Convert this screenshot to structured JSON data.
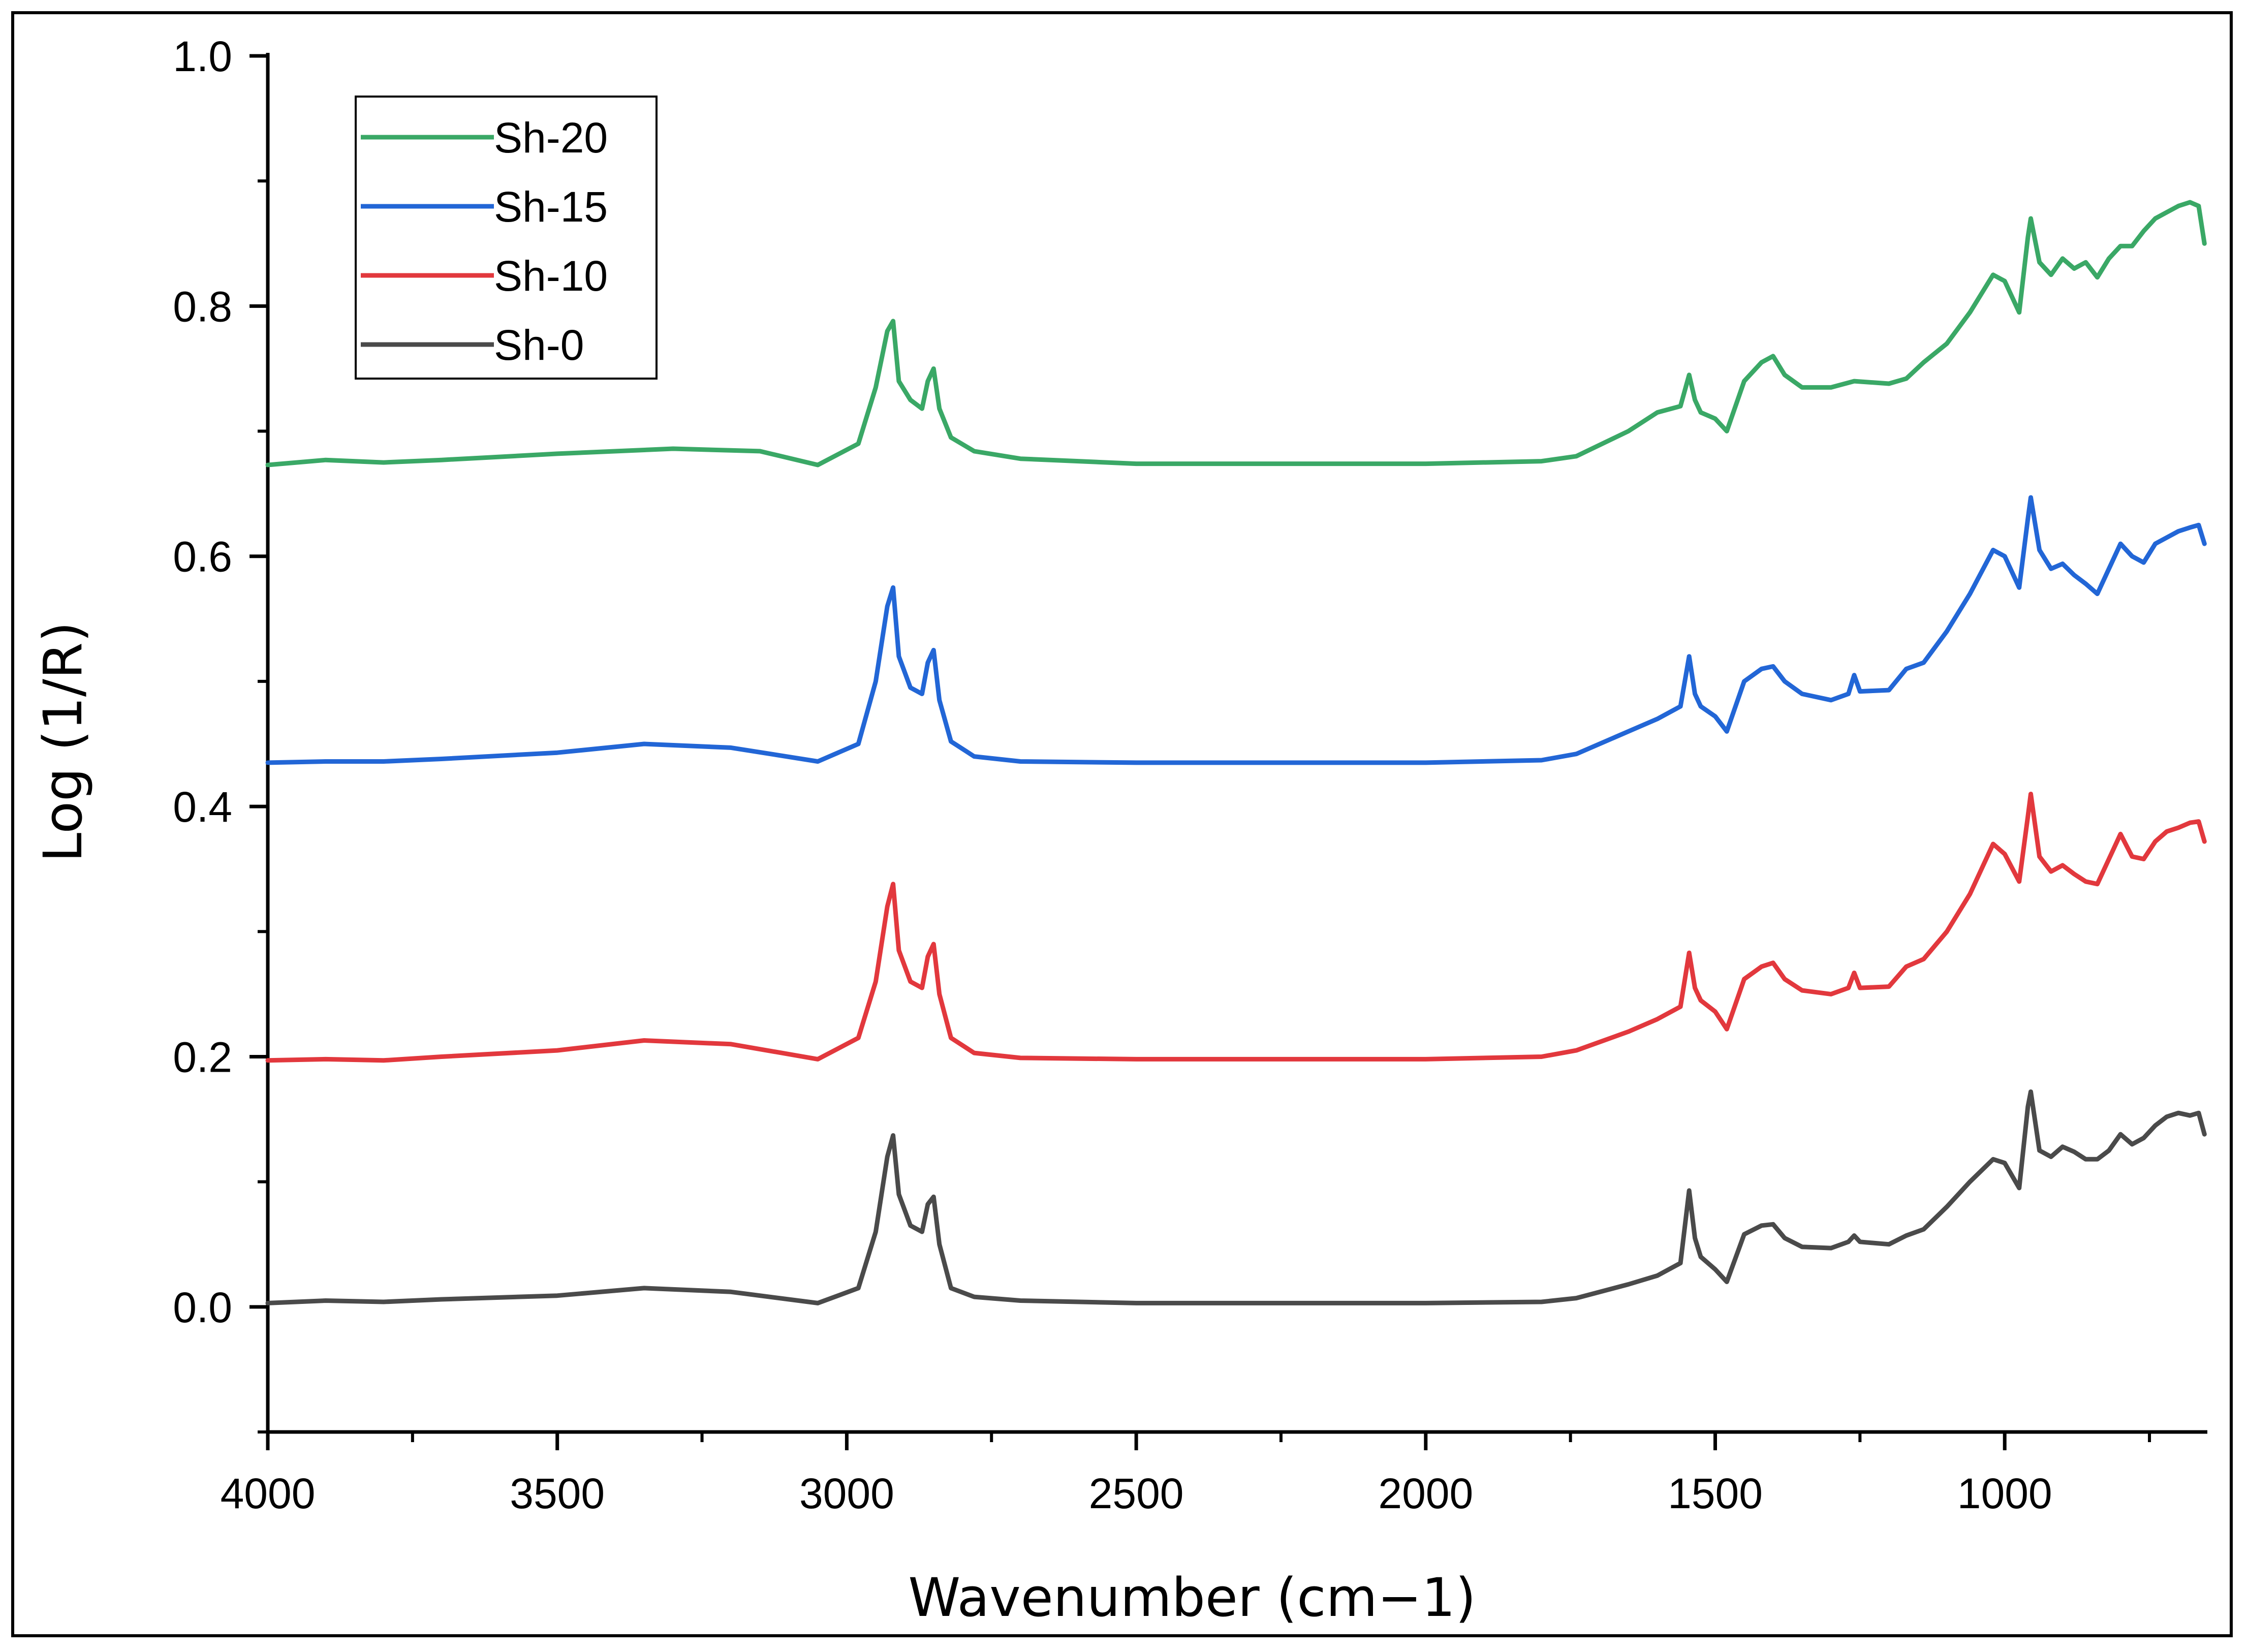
{
  "chart_data": {
    "type": "line",
    "title": "",
    "xlabel": "Wavenumber (cm−1)",
    "ylabel": "Log (1/R)",
    "xlim": [
      4000,
      650
    ],
    "ylim": [
      -0.1,
      1.0
    ],
    "x_reversed": true,
    "grid": false,
    "legend_position": "top-left",
    "x_ticks": [
      {
        "value": 4000,
        "label": "4000"
      },
      {
        "value": 3500,
        "label": "3500"
      },
      {
        "value": 3000,
        "label": "3000"
      },
      {
        "value": 2500,
        "label": "2500"
      },
      {
        "value": 2000,
        "label": "2000"
      },
      {
        "value": 1500,
        "label": "1500"
      },
      {
        "value": 1000,
        "label": "1000"
      }
    ],
    "y_ticks": [
      {
        "value": 0.0,
        "label": "0.0"
      },
      {
        "value": 0.2,
        "label": "0.2"
      },
      {
        "value": 0.4,
        "label": "0.4"
      },
      {
        "value": 0.6,
        "label": "0.6"
      },
      {
        "value": 0.8,
        "label": "0.8"
      },
      {
        "value": 1.0,
        "label": "1.0"
      }
    ],
    "series": [
      {
        "name": "Sh-20",
        "color": "#3aa866",
        "x": [
          4000,
          3900,
          3800,
          3700,
          3500,
          3300,
          3150,
          3050,
          2980,
          2950,
          2930,
          2920,
          2910,
          2890,
          2870,
          2860,
          2850,
          2840,
          2820,
          2780,
          2700,
          2500,
          2000,
          1800,
          1740,
          1650,
          1600,
          1560,
          1545,
          1535,
          1525,
          1500,
          1480,
          1450,
          1420,
          1400,
          1380,
          1350,
          1300,
          1260,
          1200,
          1170,
          1140,
          1100,
          1060,
          1020,
          1000,
          975,
          960,
          955,
          940,
          920,
          900,
          880,
          860,
          840,
          820,
          800,
          780,
          760,
          740,
          720,
          700,
          680,
          665,
          655
        ],
        "y": [
          0.673,
          0.677,
          0.675,
          0.677,
          0.682,
          0.686,
          0.684,
          0.673,
          0.69,
          0.735,
          0.78,
          0.788,
          0.74,
          0.725,
          0.718,
          0.74,
          0.75,
          0.718,
          0.695,
          0.684,
          0.678,
          0.674,
          0.674,
          0.676,
          0.68,
          0.7,
          0.715,
          0.72,
          0.745,
          0.725,
          0.715,
          0.71,
          0.7,
          0.74,
          0.755,
          0.76,
          0.745,
          0.735,
          0.735,
          0.74,
          0.738,
          0.742,
          0.755,
          0.77,
          0.795,
          0.825,
          0.82,
          0.795,
          0.855,
          0.87,
          0.835,
          0.825,
          0.838,
          0.83,
          0.835,
          0.823,
          0.838,
          0.848,
          0.848,
          0.86,
          0.87,
          0.875,
          0.88,
          0.883,
          0.88,
          0.85
        ]
      },
      {
        "name": "Sh-15",
        "color": "#2266d6",
        "x": [
          4000,
          3900,
          3800,
          3700,
          3500,
          3350,
          3200,
          3050,
          2980,
          2950,
          2930,
          2920,
          2910,
          2890,
          2870,
          2860,
          2850,
          2840,
          2820,
          2780,
          2700,
          2500,
          2000,
          1800,
          1740,
          1650,
          1600,
          1560,
          1545,
          1535,
          1525,
          1500,
          1480,
          1450,
          1420,
          1400,
          1380,
          1350,
          1300,
          1270,
          1260,
          1250,
          1200,
          1170,
          1140,
          1100,
          1060,
          1020,
          1000,
          975,
          960,
          955,
          940,
          920,
          900,
          880,
          860,
          840,
          820,
          800,
          780,
          760,
          740,
          720,
          700,
          680,
          665,
          655
        ],
        "y": [
          0.435,
          0.436,
          0.436,
          0.438,
          0.443,
          0.45,
          0.447,
          0.436,
          0.45,
          0.5,
          0.56,
          0.575,
          0.52,
          0.495,
          0.49,
          0.515,
          0.525,
          0.485,
          0.452,
          0.44,
          0.436,
          0.435,
          0.435,
          0.437,
          0.442,
          0.46,
          0.47,
          0.48,
          0.52,
          0.49,
          0.48,
          0.472,
          0.46,
          0.5,
          0.51,
          0.512,
          0.5,
          0.49,
          0.485,
          0.49,
          0.505,
          0.492,
          0.493,
          0.51,
          0.515,
          0.54,
          0.57,
          0.605,
          0.6,
          0.575,
          0.63,
          0.647,
          0.605,
          0.59,
          0.594,
          0.585,
          0.578,
          0.57,
          0.59,
          0.61,
          0.6,
          0.595,
          0.61,
          0.615,
          0.62,
          0.623,
          0.625,
          0.61
        ]
      },
      {
        "name": "Sh-10",
        "color": "#e2383d",
        "x": [
          4000,
          3900,
          3800,
          3700,
          3500,
          3350,
          3200,
          3050,
          2980,
          2950,
          2930,
          2920,
          2910,
          2890,
          2870,
          2860,
          2850,
          2840,
          2820,
          2780,
          2700,
          2500,
          2000,
          1800,
          1740,
          1650,
          1600,
          1560,
          1545,
          1535,
          1525,
          1500,
          1480,
          1450,
          1420,
          1400,
          1380,
          1350,
          1300,
          1270,
          1260,
          1250,
          1200,
          1170,
          1140,
          1100,
          1060,
          1020,
          1000,
          975,
          960,
          955,
          940,
          920,
          900,
          880,
          860,
          840,
          820,
          800,
          780,
          760,
          740,
          720,
          700,
          680,
          665,
          655
        ],
        "y": [
          0.197,
          0.198,
          0.197,
          0.2,
          0.205,
          0.213,
          0.21,
          0.198,
          0.215,
          0.26,
          0.32,
          0.338,
          0.285,
          0.26,
          0.255,
          0.28,
          0.29,
          0.25,
          0.215,
          0.203,
          0.199,
          0.198,
          0.198,
          0.2,
          0.205,
          0.22,
          0.23,
          0.24,
          0.283,
          0.255,
          0.245,
          0.236,
          0.222,
          0.262,
          0.272,
          0.275,
          0.262,
          0.253,
          0.25,
          0.255,
          0.267,
          0.255,
          0.256,
          0.272,
          0.278,
          0.3,
          0.33,
          0.37,
          0.362,
          0.34,
          0.392,
          0.41,
          0.36,
          0.348,
          0.353,
          0.346,
          0.34,
          0.338,
          0.358,
          0.378,
          0.36,
          0.358,
          0.372,
          0.38,
          0.383,
          0.387,
          0.388,
          0.372
        ]
      },
      {
        "name": "Sh-0",
        "color": "#4a4a4a",
        "x": [
          4000,
          3900,
          3800,
          3700,
          3500,
          3350,
          3200,
          3050,
          2980,
          2950,
          2930,
          2920,
          2910,
          2890,
          2870,
          2860,
          2850,
          2840,
          2820,
          2780,
          2700,
          2500,
          2000,
          1800,
          1740,
          1650,
          1600,
          1560,
          1545,
          1535,
          1525,
          1500,
          1480,
          1450,
          1420,
          1400,
          1380,
          1350,
          1300,
          1270,
          1260,
          1250,
          1200,
          1170,
          1140,
          1100,
          1060,
          1020,
          1000,
          975,
          960,
          955,
          940,
          920,
          900,
          880,
          860,
          840,
          820,
          800,
          780,
          760,
          740,
          720,
          700,
          680,
          665,
          655
        ],
        "y": [
          0.003,
          0.005,
          0.004,
          0.006,
          0.009,
          0.015,
          0.012,
          0.003,
          0.015,
          0.06,
          0.12,
          0.137,
          0.09,
          0.065,
          0.06,
          0.082,
          0.088,
          0.05,
          0.015,
          0.008,
          0.005,
          0.003,
          0.003,
          0.004,
          0.007,
          0.018,
          0.025,
          0.035,
          0.093,
          0.055,
          0.04,
          0.03,
          0.02,
          0.058,
          0.065,
          0.066,
          0.055,
          0.048,
          0.047,
          0.052,
          0.057,
          0.052,
          0.05,
          0.057,
          0.062,
          0.08,
          0.1,
          0.118,
          0.115,
          0.095,
          0.16,
          0.172,
          0.125,
          0.12,
          0.128,
          0.124,
          0.118,
          0.118,
          0.125,
          0.138,
          0.13,
          0.135,
          0.145,
          0.152,
          0.155,
          0.153,
          0.155,
          0.138
        ]
      }
    ]
  }
}
